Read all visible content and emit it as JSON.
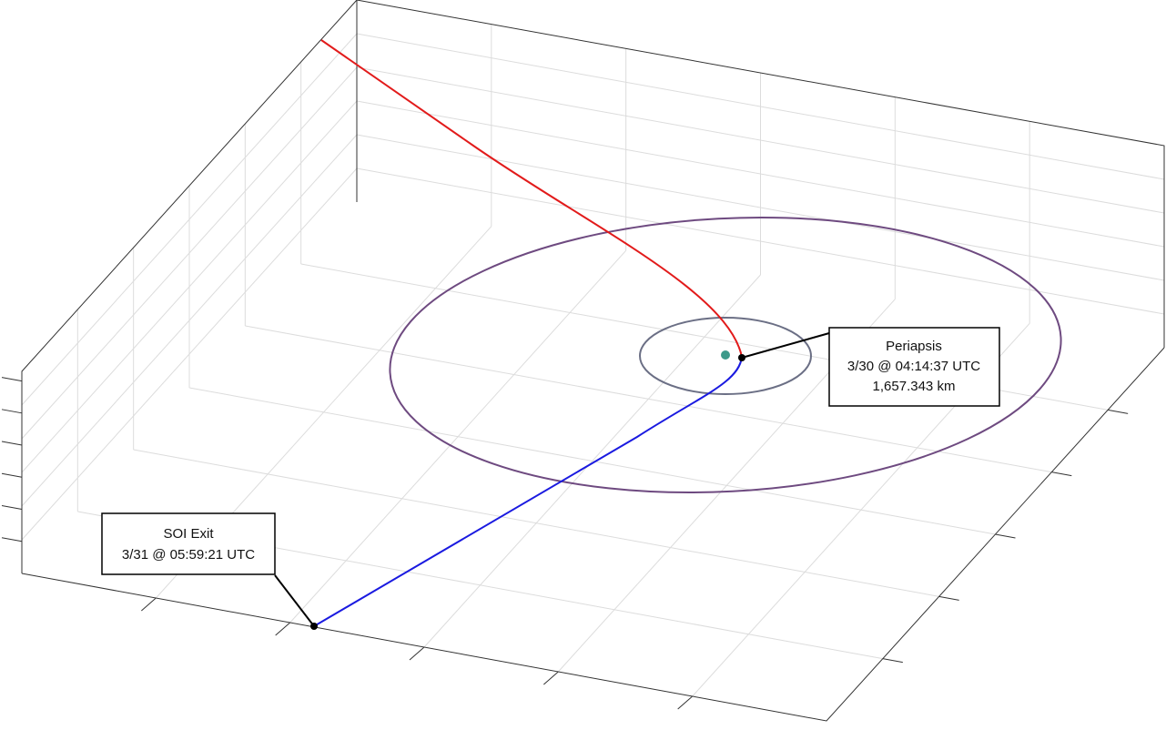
{
  "annotations": [
    {
      "lines": [
        "Periapsis",
        "3/30 @ 04:14:37 UTC",
        "1,657.343 km"
      ]
    },
    {
      "lines": [
        "SOI Exit",
        "3/31 @ 05:59:21 UTC"
      ]
    }
  ]
}
